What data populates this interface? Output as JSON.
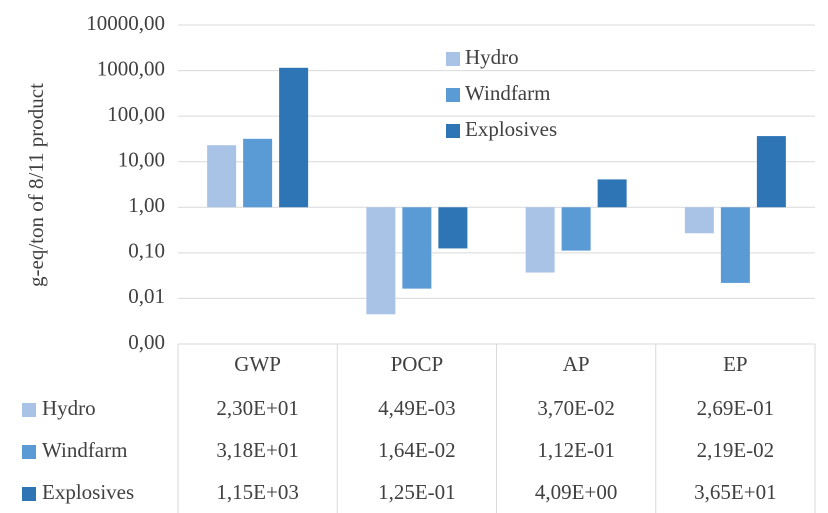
{
  "chart_data": {
    "type": "bar",
    "y_label": "g-eq/ton of 8/11 product",
    "categories": [
      "GWP",
      "POCP",
      "AP",
      "EP"
    ],
    "series": [
      {
        "name": "Hydro",
        "color": "#a9c3e7",
        "values": [
          23.0,
          0.00449,
          0.037,
          0.269
        ],
        "value_labels": [
          "2,30E+01",
          "4,49E-03",
          "3,70E-02",
          "2,69E-01"
        ]
      },
      {
        "name": "Windfarm",
        "color": "#5b9bd5",
        "values": [
          31.8,
          0.0164,
          0.112,
          0.0219
        ],
        "value_labels": [
          "3,18E+01",
          "1,64E-02",
          "1,12E-01",
          "2,19E-02"
        ]
      },
      {
        "name": "Explosives",
        "color": "#2e75b6",
        "values": [
          1150,
          0.125,
          4.09,
          36.5
        ],
        "value_labels": [
          "1,15E+03",
          "1,25E-01",
          "4,09E+00",
          "3,65E+01"
        ]
      }
    ],
    "log_scale": true,
    "ylim": [
      0.001,
      10000
    ],
    "yticks": [
      {
        "value": 0.001,
        "label": "0,00"
      },
      {
        "value": 0.01,
        "label": "0,01"
      },
      {
        "value": 0.1,
        "label": "0,10"
      },
      {
        "value": 1,
        "label": "1,00"
      },
      {
        "value": 10,
        "label": "10,00"
      },
      {
        "value": 100,
        "label": "100,00"
      },
      {
        "value": 1000,
        "label": "1000,00"
      },
      {
        "value": 10000,
        "label": "10000,00"
      }
    ],
    "grid": true,
    "legend": "top",
    "data_table": true
  }
}
